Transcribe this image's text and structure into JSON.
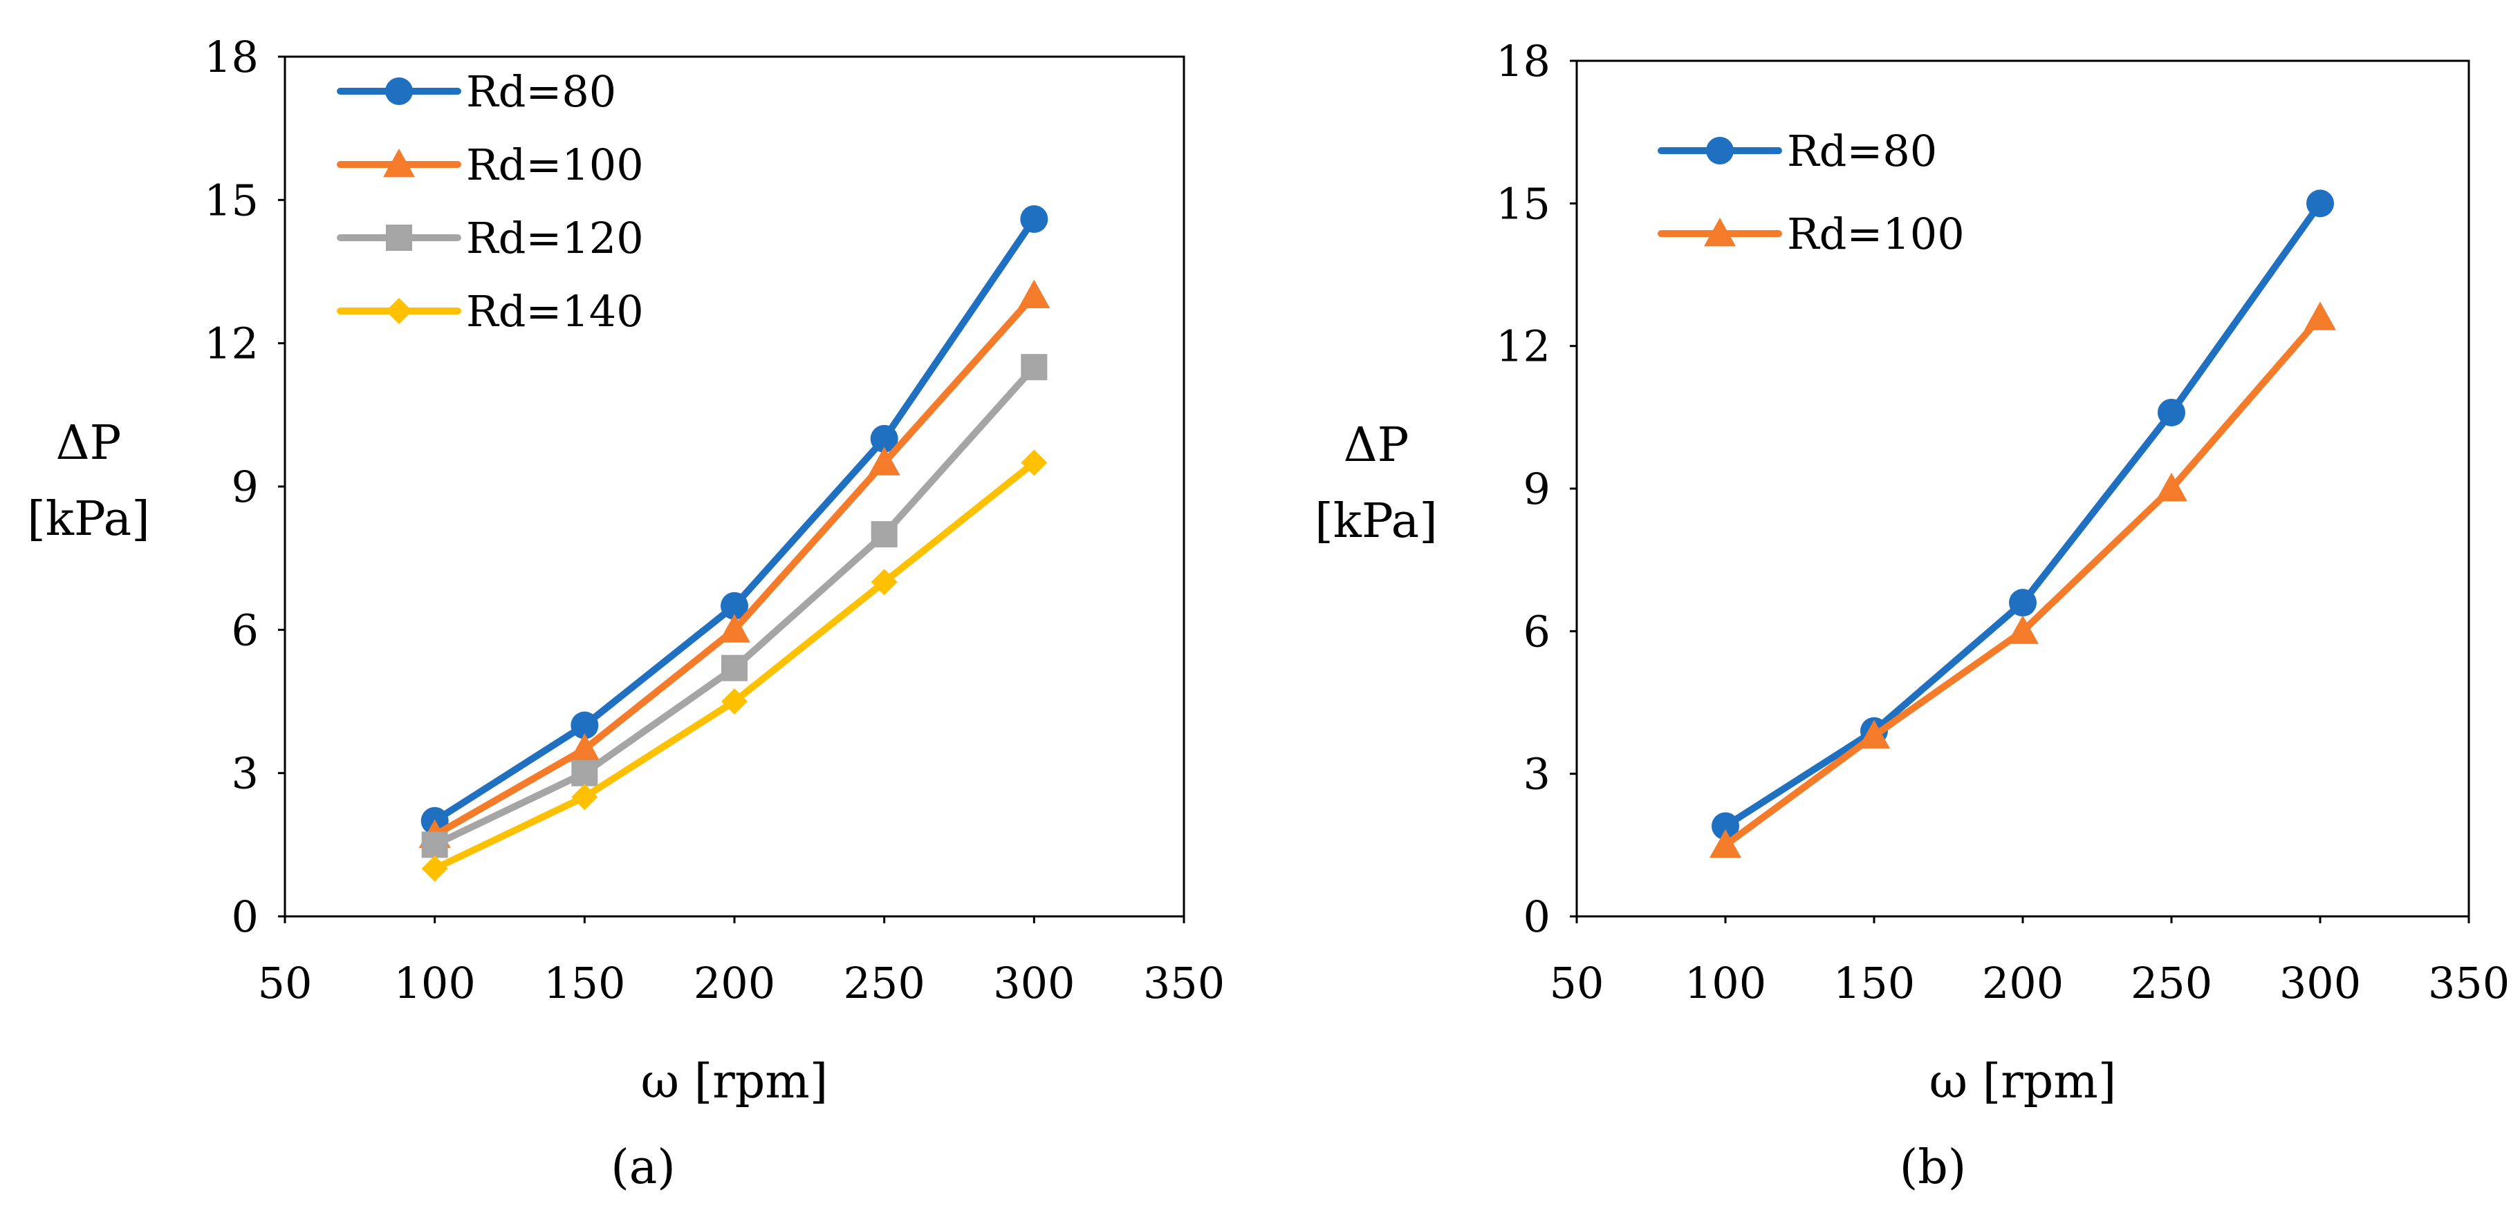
{
  "chart_data": [
    {
      "type": "line",
      "title": "",
      "caption": "(a)",
      "xlabel": "ω [rpm]",
      "ylabel": [
        "ΔP",
        "[kPa]"
      ],
      "xlim": [
        50,
        350
      ],
      "ylim": [
        0,
        18
      ],
      "xticks": [
        50,
        100,
        150,
        200,
        250,
        300,
        350
      ],
      "yticks": [
        0,
        3,
        6,
        9,
        12,
        15,
        18
      ],
      "grid": false,
      "legend": "top-left",
      "x": [
        100,
        150,
        200,
        250,
        300
      ],
      "series": [
        {
          "name": "Rd=80",
          "color": "#1F70C1",
          "marker": "circle",
          "values": [
            2.0,
            4.0,
            6.5,
            10.0,
            14.6
          ]
        },
        {
          "name": "Rd=100",
          "color": "#F47B2A",
          "marker": "triangle",
          "values": [
            1.7,
            3.5,
            6.0,
            9.5,
            13.0
          ]
        },
        {
          "name": "Rd=120",
          "color": "#A5A5A5",
          "marker": "square",
          "values": [
            1.5,
            3.0,
            5.2,
            8.0,
            11.5
          ]
        },
        {
          "name": "Rd=140",
          "color": "#FFC000",
          "marker": "diamond",
          "values": [
            1.0,
            2.5,
            4.5,
            7.0,
            9.5
          ]
        }
      ]
    },
    {
      "type": "line",
      "title": "",
      "caption": "(b)",
      "xlabel": "ω [rpm]",
      "ylabel": [
        "ΔP",
        "[kPa]"
      ],
      "xlim": [
        50,
        350
      ],
      "ylim": [
        0,
        18
      ],
      "xticks": [
        50,
        100,
        150,
        200,
        250,
        300,
        350
      ],
      "yticks": [
        0,
        3,
        6,
        9,
        12,
        15,
        18
      ],
      "grid": false,
      "legend": "top-left",
      "x": [
        100,
        150,
        200,
        250,
        300
      ],
      "series": [
        {
          "name": "Rd=80",
          "color": "#1F70C1",
          "marker": "circle",
          "values": [
            1.9,
            3.9,
            6.6,
            10.6,
            15.0
          ]
        },
        {
          "name": "Rd=100",
          "color": "#F47B2A",
          "marker": "triangle",
          "values": [
            1.5,
            3.8,
            6.0,
            9.0,
            12.6
          ]
        }
      ]
    }
  ]
}
